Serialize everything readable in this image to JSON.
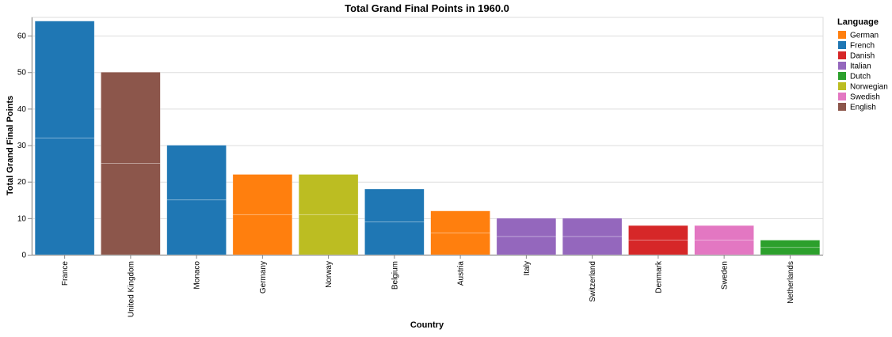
{
  "chart_data": {
    "type": "bar",
    "stacked": true,
    "title": "Total Grand Final Points in 1960.0",
    "xlabel": "Country",
    "ylabel": "Total Grand Final Points",
    "ylim": [
      0,
      65
    ],
    "yticks": [
      0,
      10,
      20,
      30,
      40,
      50,
      60
    ],
    "grid": true,
    "legend": {
      "title": "Language",
      "placement": "right",
      "entries": [
        {
          "name": "German",
          "color": "#ff7f0e"
        },
        {
          "name": "French",
          "color": "#1f77b4"
        },
        {
          "name": "Danish",
          "color": "#d62728"
        },
        {
          "name": "Italian",
          "color": "#9467bd"
        },
        {
          "name": "Dutch",
          "color": "#2ca02c"
        },
        {
          "name": "Norwegian",
          "color": "#bcbd22"
        },
        {
          "name": "Swedish",
          "color": "#e377c2"
        },
        {
          "name": "English",
          "color": "#8c564b"
        }
      ]
    },
    "categories": [
      "France",
      "United Kingdom",
      "Monaco",
      "Germany",
      "Norway",
      "Belgium",
      "Austria",
      "Italy",
      "Switzerland",
      "Denmark",
      "Sweden",
      "Netherlands"
    ],
    "bars": [
      {
        "country": "France",
        "language": "French",
        "segments": [
          32,
          32
        ]
      },
      {
        "country": "United Kingdom",
        "language": "English",
        "segments": [
          25,
          25
        ]
      },
      {
        "country": "Monaco",
        "language": "French",
        "segments": [
          15,
          15
        ]
      },
      {
        "country": "Germany",
        "language": "German",
        "segments": [
          11,
          11
        ]
      },
      {
        "country": "Norway",
        "language": "Norwegian",
        "segments": [
          11,
          11
        ]
      },
      {
        "country": "Belgium",
        "language": "French",
        "segments": [
          9,
          9
        ]
      },
      {
        "country": "Austria",
        "language": "German",
        "segments": [
          6,
          6
        ]
      },
      {
        "country": "Italy",
        "language": "Italian",
        "segments": [
          5,
          5
        ]
      },
      {
        "country": "Switzerland",
        "language": "Italian",
        "segments": [
          5,
          5
        ]
      },
      {
        "country": "Denmark",
        "language": "Danish",
        "segments": [
          4,
          4
        ]
      },
      {
        "country": "Sweden",
        "language": "Swedish",
        "segments": [
          4,
          4
        ]
      },
      {
        "country": "Netherlands",
        "language": "Dutch",
        "segments": [
          2,
          2
        ]
      }
    ]
  }
}
